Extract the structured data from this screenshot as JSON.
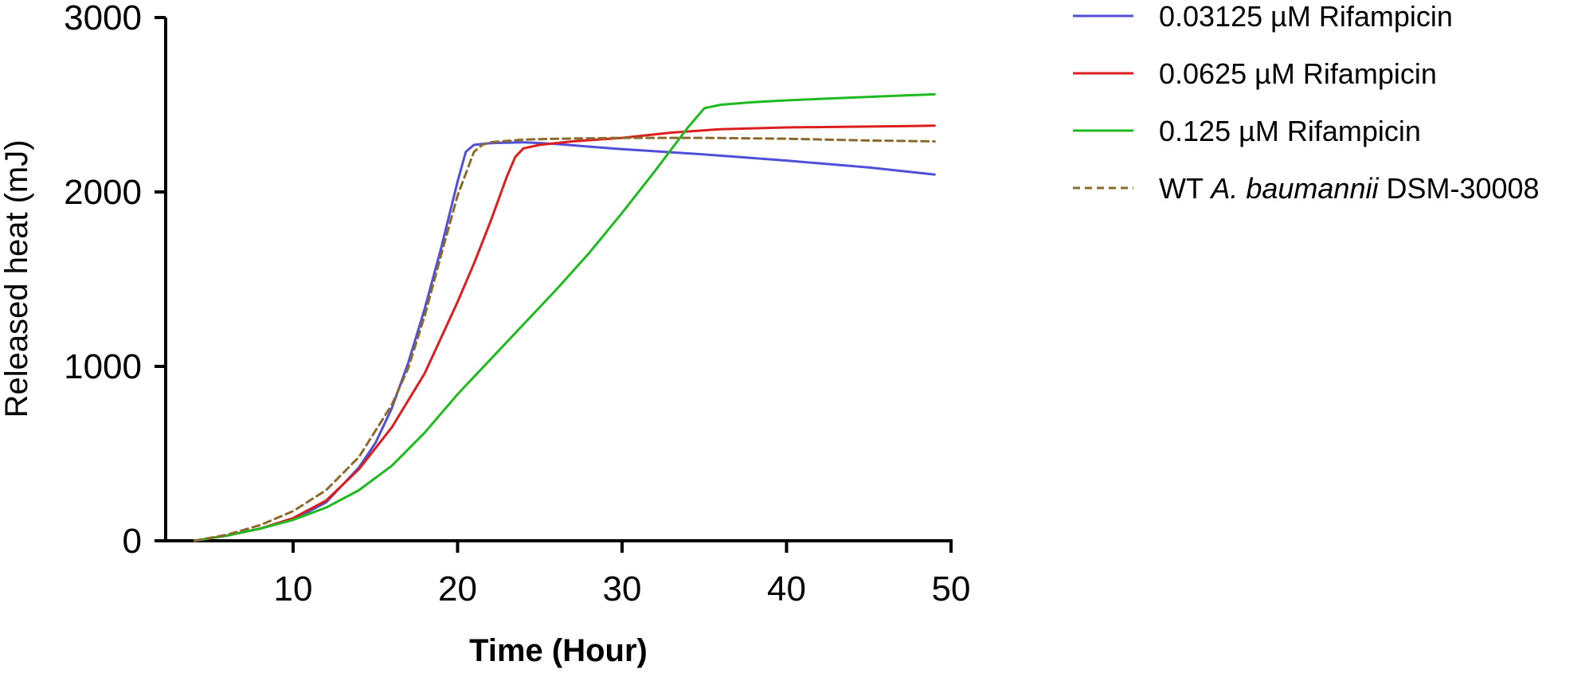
{
  "chart_data": {
    "type": "line",
    "title": "",
    "xlabel": "Time (Hour)",
    "ylabel": "Released heat (mJ)",
    "xlim": [
      0,
      50
    ],
    "ylim": [
      0,
      3000
    ],
    "xticks": [
      10,
      20,
      30,
      40,
      50
    ],
    "yticks": [
      0,
      1000,
      2000,
      3000
    ],
    "grid": false,
    "legend_position": "top-right",
    "series": [
      {
        "name": "0.03125 µM Rifampicin",
        "legend": {
          "pre": "",
          "italic": "",
          "post": "0.03125 µM Rifampicin"
        },
        "color": "#4f4fd9",
        "dash": "solid",
        "x": [
          4,
          6,
          8,
          10,
          12,
          14,
          15,
          16,
          17,
          18,
          19,
          20,
          20.5,
          21,
          22,
          24,
          26,
          28,
          30,
          35,
          40,
          45,
          49
        ],
        "y": [
          0,
          30,
          70,
          120,
          220,
          420,
          560,
          760,
          1020,
          1330,
          1680,
          2060,
          2230,
          2270,
          2280,
          2285,
          2275,
          2260,
          2245,
          2215,
          2180,
          2140,
          2100
        ]
      },
      {
        "name": "0.0625 µM Rifampicin",
        "legend": {
          "pre": "",
          "italic": "",
          "post": "0.0625 µM Rifampicin"
        },
        "color": "#dc1e1e",
        "dash": "solid",
        "x": [
          4,
          6,
          8,
          10,
          12,
          14,
          16,
          18,
          20,
          21,
          22,
          23,
          23.5,
          24,
          25,
          27,
          30,
          33,
          36,
          40,
          45,
          49
        ],
        "y": [
          0,
          30,
          70,
          130,
          230,
          410,
          650,
          960,
          1370,
          1590,
          1830,
          2090,
          2200,
          2250,
          2270,
          2290,
          2310,
          2340,
          2360,
          2370,
          2375,
          2380
        ]
      },
      {
        "name": "0.125 µM Rifampicin",
        "legend": {
          "pre": "",
          "italic": "",
          "post": "0.125 µM Rifampicin"
        },
        "color": "#1fba1f",
        "dash": "solid",
        "x": [
          4,
          6,
          8,
          10,
          12,
          14,
          16,
          18,
          20,
          22,
          24,
          26,
          28,
          30,
          32,
          34,
          35,
          36,
          38,
          40,
          45,
          49
        ],
        "y": [
          0,
          30,
          70,
          120,
          190,
          290,
          430,
          620,
          840,
          1040,
          1240,
          1440,
          1650,
          1880,
          2120,
          2370,
          2480,
          2500,
          2515,
          2525,
          2545,
          2560
        ]
      },
      {
        "name": "WT A. baumannii DSM-30008",
        "legend": {
          "pre": "WT ",
          "italic": "A. baumannii",
          "post": " DSM-30008"
        },
        "color": "#8b6a2e",
        "dash": "dashed",
        "x": [
          4,
          6,
          8,
          10,
          12,
          14,
          16,
          17,
          18,
          19,
          20,
          21,
          21.5,
          22,
          24,
          26,
          30,
          35,
          40,
          45,
          49
        ],
        "y": [
          0,
          35,
          90,
          170,
          290,
          480,
          780,
          990,
          1290,
          1640,
          1980,
          2230,
          2270,
          2285,
          2300,
          2305,
          2310,
          2310,
          2305,
          2295,
          2290
        ]
      }
    ]
  }
}
